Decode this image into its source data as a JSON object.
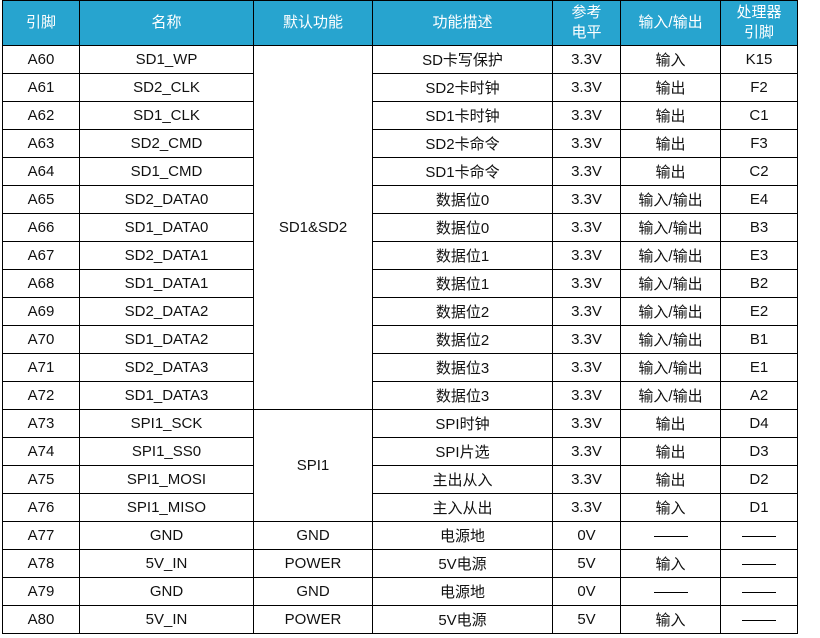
{
  "headers": {
    "pin": "引脚",
    "name": "名称",
    "func": "默认功能",
    "desc": "功能描述",
    "volt_line1": "参考",
    "volt_line2": "电平",
    "io": "输入/输出",
    "cpu_line1": "处理器",
    "cpu_line2": "引脚"
  },
  "groups": [
    {
      "label": "SD1&SD2",
      "start": 0,
      "span": 13
    },
    {
      "label": "SPI1",
      "start": 13,
      "span": 4
    },
    {
      "label": "GND",
      "start": 17,
      "span": 1
    },
    {
      "label": "POWER",
      "start": 18,
      "span": 1
    },
    {
      "label": "GND",
      "start": 19,
      "span": 1
    },
    {
      "label": "POWER",
      "start": 20,
      "span": 1
    }
  ],
  "rows": [
    {
      "pin": "A60",
      "name": "SD1_WP",
      "desc": "SD卡写保护",
      "volt": "3.3V",
      "io": "输入",
      "cpu": "K15"
    },
    {
      "pin": "A61",
      "name": "SD2_CLK",
      "desc": "SD2卡时钟",
      "volt": "3.3V",
      "io": "输出",
      "cpu": "F2"
    },
    {
      "pin": "A62",
      "name": "SD1_CLK",
      "desc": "SD1卡时钟",
      "volt": "3.3V",
      "io": "输出",
      "cpu": "C1"
    },
    {
      "pin": "A63",
      "name": "SD2_CMD",
      "desc": "SD2卡命令",
      "volt": "3.3V",
      "io": "输出",
      "cpu": "F3"
    },
    {
      "pin": "A64",
      "name": "SD1_CMD",
      "desc": "SD1卡命令",
      "volt": "3.3V",
      "io": "输出",
      "cpu": "C2"
    },
    {
      "pin": "A65",
      "name": "SD2_DATA0",
      "desc": "数据位0",
      "volt": "3.3V",
      "io": "输入/输出",
      "cpu": "E4"
    },
    {
      "pin": "A66",
      "name": "SD1_DATA0",
      "desc": "数据位0",
      "volt": "3.3V",
      "io": "输入/输出",
      "cpu": "B3"
    },
    {
      "pin": "A67",
      "name": "SD2_DATA1",
      "desc": "数据位1",
      "volt": "3.3V",
      "io": "输入/输出",
      "cpu": "E3"
    },
    {
      "pin": "A68",
      "name": "SD1_DATA1",
      "desc": "数据位1",
      "volt": "3.3V",
      "io": "输入/输出",
      "cpu": "B2"
    },
    {
      "pin": "A69",
      "name": "SD2_DATA2",
      "desc": "数据位2",
      "volt": "3.3V",
      "io": "输入/输出",
      "cpu": "E2"
    },
    {
      "pin": "A70",
      "name": "SD1_DATA2",
      "desc": "数据位2",
      "volt": "3.3V",
      "io": "输入/输出",
      "cpu": "B1"
    },
    {
      "pin": "A71",
      "name": "SD2_DATA3",
      "desc": "数据位3",
      "volt": "3.3V",
      "io": "输入/输出",
      "cpu": "E1"
    },
    {
      "pin": "A72",
      "name": "SD1_DATA3",
      "desc": "数据位3",
      "volt": "3.3V",
      "io": "输入/输出",
      "cpu": "A2"
    },
    {
      "pin": "A73",
      "name": "SPI1_SCK",
      "desc": "SPI时钟",
      "volt": "3.3V",
      "io": "输出",
      "cpu": "D4"
    },
    {
      "pin": "A74",
      "name": "SPI1_SS0",
      "desc": "SPI片选",
      "volt": "3.3V",
      "io": "输出",
      "cpu": "D3"
    },
    {
      "pin": "A75",
      "name": "SPI1_MOSI",
      "desc": "主出从入",
      "volt": "3.3V",
      "io": "输出",
      "cpu": "D2"
    },
    {
      "pin": "A76",
      "name": "SPI1_MISO",
      "desc": "主入从出",
      "volt": "3.3V",
      "io": "输入",
      "cpu": "D1"
    },
    {
      "pin": "A77",
      "name": "GND",
      "desc": "电源地",
      "volt": "0V",
      "io": "dash",
      "cpu": "dash"
    },
    {
      "pin": "A78",
      "name": "5V_IN",
      "desc": "5V电源",
      "volt": "5V",
      "io": "输入",
      "cpu": "dash"
    },
    {
      "pin": "A79",
      "name": "GND",
      "desc": "电源地",
      "volt": "0V",
      "io": "dash",
      "cpu": "dash"
    },
    {
      "pin": "A80",
      "name": "5V_IN",
      "desc": "5V电源",
      "volt": "5V",
      "io": "输入",
      "cpu": "dash"
    }
  ]
}
